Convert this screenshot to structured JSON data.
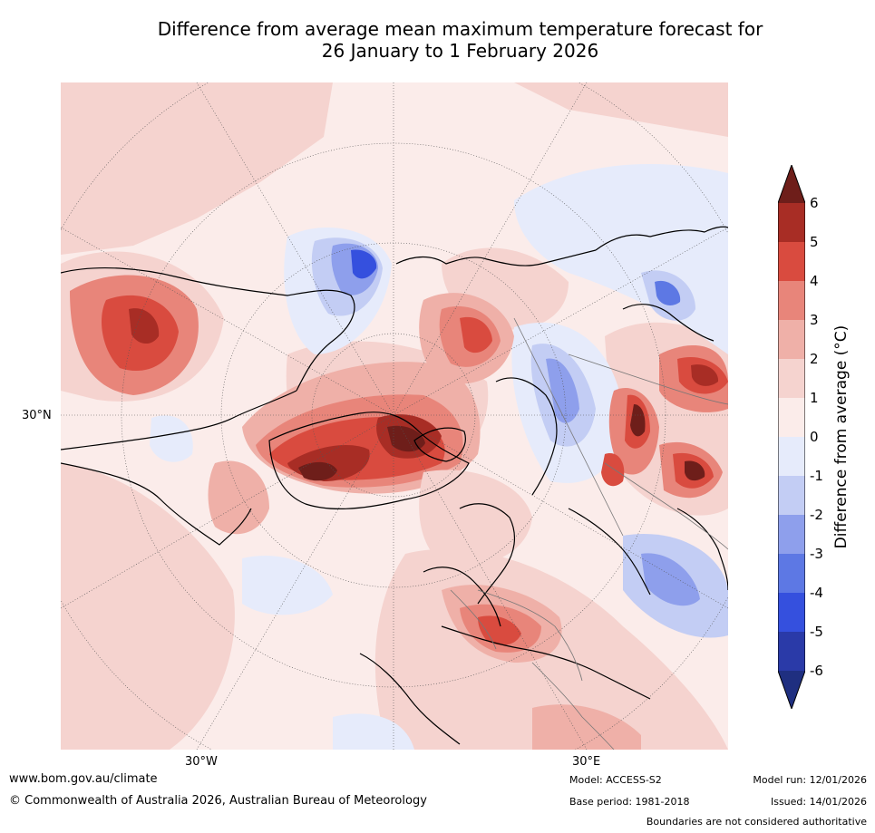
{
  "title": {
    "line1": "Difference from average mean maximum temperature forecast for",
    "line2": "26 January to 1 February 2026"
  },
  "axis": {
    "lat_label": "30°N",
    "lon_left": "30°W",
    "lon_right": "30°E"
  },
  "colorbar": {
    "label": "Difference from average (°C)",
    "ticks": [
      "6",
      "5",
      "4",
      "3",
      "2",
      "1",
      "0",
      "-1",
      "-2",
      "-3",
      "-4",
      "-5",
      "-6"
    ],
    "colors": {
      "gt6": "#6e1e1a",
      "c5_6": "#a82d25",
      "c4_5": "#d94b3f",
      "c3_4": "#e8857a",
      "c2_3": "#efb0a8",
      "c1_2": "#f5d3cf",
      "c0_1": "#fbecea",
      "cm1_0": "#e6ebfb",
      "cm2_m1": "#c3cdf4",
      "cm3_m2": "#8e9fec",
      "cm4_m3": "#5d78e4",
      "cm5_m4": "#3550de",
      "cm6_m5": "#2a3aa8",
      "lt6": "#1f2f80"
    }
  },
  "footer": {
    "url": "www.bom.gov.au/climate",
    "copyright": "© Commonwealth of Australia 2026, Australian Bureau of Meteorology",
    "model": "Model: ACCESS-S2",
    "base_period": "Base period: 1981-2018",
    "model_run": "Model run: 12/01/2026",
    "issued": "Issued: 14/01/2026",
    "disclaimer": "Boundaries are not considered authoritative"
  }
}
